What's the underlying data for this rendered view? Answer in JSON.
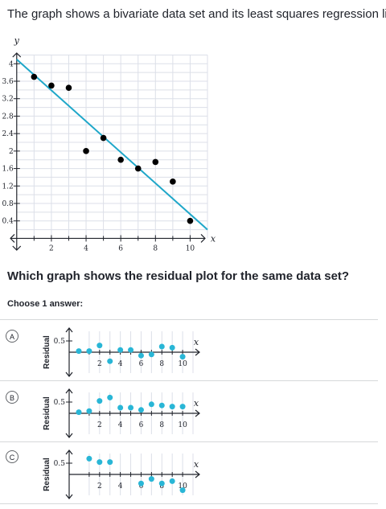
{
  "prompt": "The graph shows a bivariate data set and its least squares regression line.",
  "question": "Which graph shows the residual plot for the same data set?",
  "choose_label": "Choose 1 answer:",
  "colors": {
    "line": "#1fa7c9",
    "dot": "#000000",
    "residual_dot": "#29b6d6",
    "grid": "#dcdfe8"
  },
  "chart_data": [
    {
      "type": "scatter",
      "xlabel": "x",
      "ylabel": "y",
      "xlim": [
        -0.5,
        11
      ],
      "ylim": [
        -0.25,
        4.3
      ],
      "x_ticks": [
        2,
        4,
        6,
        8,
        10
      ],
      "y_ticks": [
        0.4,
        0.8,
        1.2,
        1.6,
        2,
        2.4,
        2.8,
        3.2,
        3.6,
        4
      ],
      "x_tick_labels": [
        "2",
        "4",
        "6",
        "8",
        "10"
      ],
      "y_tick_labels": [
        "0.4",
        "0.8",
        "1.2",
        "1.6",
        "2",
        "2.4",
        "2.8",
        "3.2",
        "3.6",
        "4"
      ],
      "grid": true,
      "points": [
        {
          "x": 1,
          "y": 3.7
        },
        {
          "x": 2,
          "y": 3.5
        },
        {
          "x": 3,
          "y": 3.45
        },
        {
          "x": 4,
          "y": 2.0
        },
        {
          "x": 5,
          "y": 2.3
        },
        {
          "x": 6,
          "y": 1.8
        },
        {
          "x": 7,
          "y": 1.6
        },
        {
          "x": 8,
          "y": 1.75
        },
        {
          "x": 9,
          "y": 1.3
        },
        {
          "x": 10,
          "y": 0.4
        }
      ],
      "regression_line": {
        "x": [
          0,
          11
        ],
        "y": [
          4.1,
          0.2
        ]
      }
    }
  ],
  "choices": [
    {
      "letter": "A",
      "chart": {
        "type": "scatter",
        "ylabel": "Residual",
        "xlabel": "x",
        "y_tick_label": "0.5",
        "x_tick_labels": [
          "2",
          "4",
          "6",
          "8",
          "10"
        ],
        "residuals": [
          0.05,
          0.05,
          0.3,
          -0.4,
          0.1,
          0.1,
          -0.15,
          -0.1,
          0.25,
          0.2,
          -0.2
        ]
      }
    },
    {
      "letter": "B",
      "chart": {
        "type": "scatter",
        "ylabel": "Residual",
        "xlabel": "x",
        "y_tick_label": "0.5",
        "x_tick_labels": [
          "2",
          "4",
          "6",
          "8",
          "10"
        ],
        "residuals": [
          0.05,
          0.1,
          0.55,
          0.7,
          0.25,
          0.25,
          0.15,
          0.4,
          0.35,
          0.3,
          0.3
        ]
      }
    },
    {
      "letter": "C",
      "chart": {
        "type": "scatter",
        "ylabel": "Residual",
        "xlabel": "x",
        "y_tick_label": "0.5",
        "x_tick_labels": [
          "2",
          "4",
          "6",
          "8",
          "10"
        ],
        "residuals": [
          0.7,
          0.55,
          0.55,
          -0.4,
          -0.2,
          -0.4,
          -0.3,
          -0.7
        ]
      }
    }
  ]
}
